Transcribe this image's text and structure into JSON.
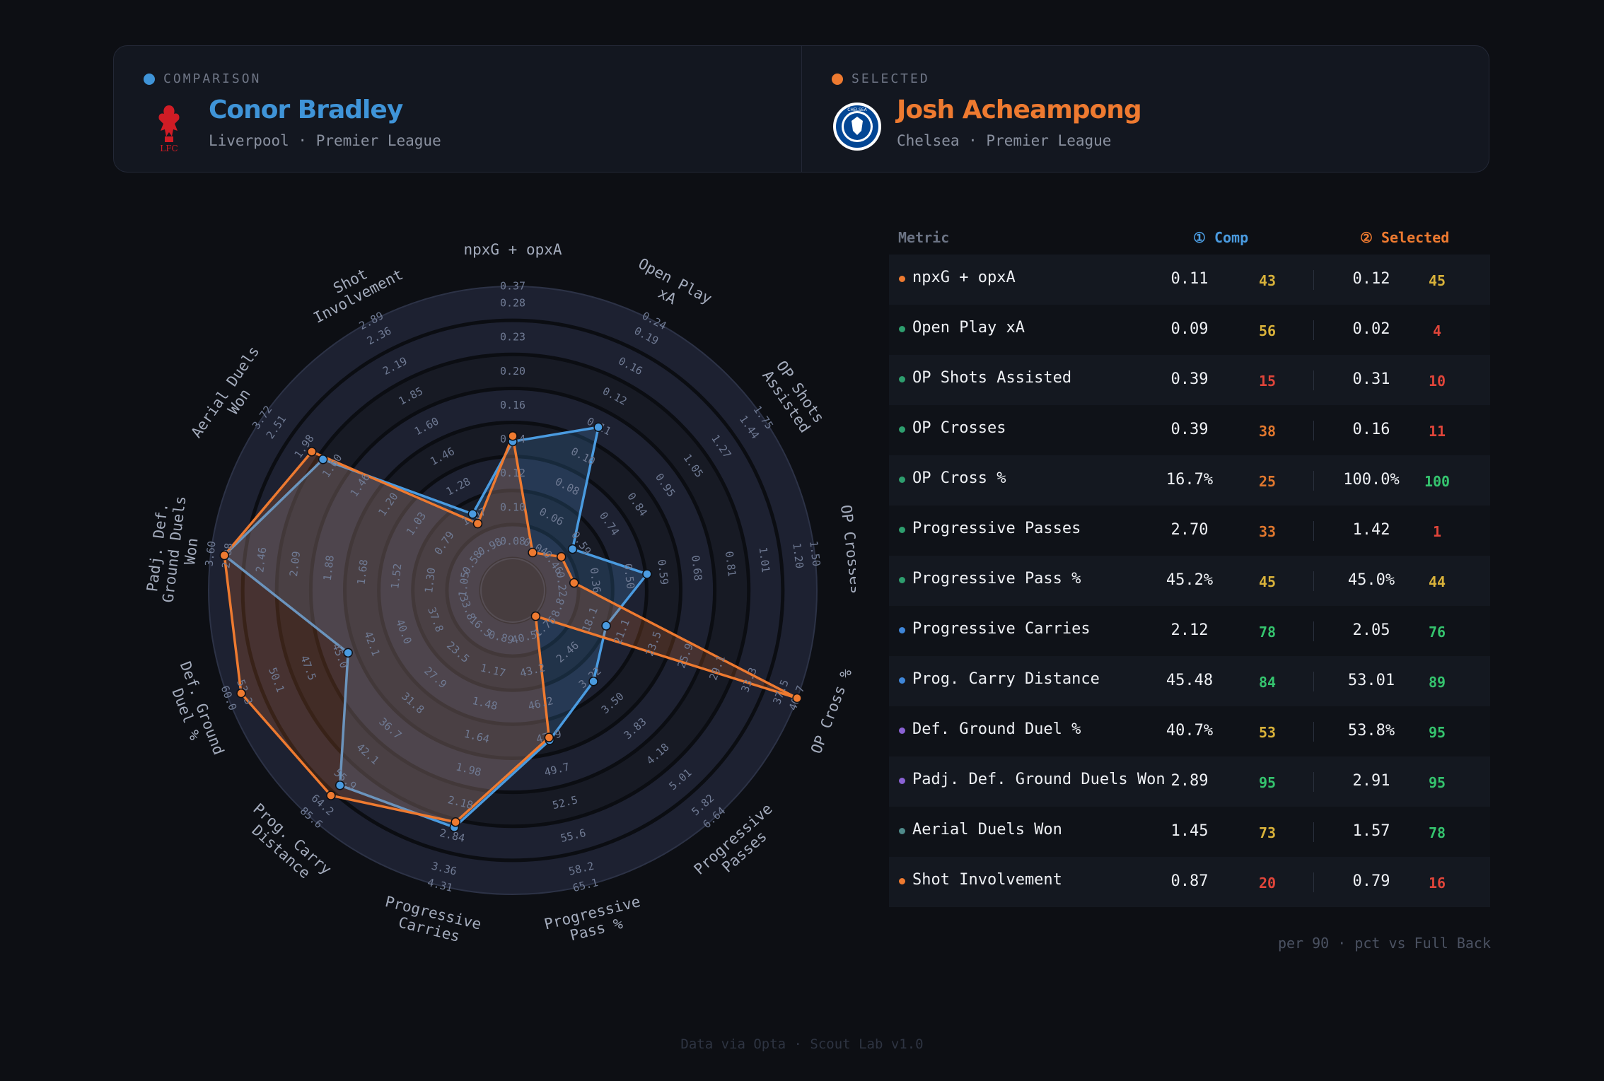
{
  "header": {
    "comparison": {
      "tag": "COMPARISON",
      "name": "Conor Bradley",
      "meta": "Liverpool · Premier League",
      "color": "#3f94d8",
      "crest_text": "LFC"
    },
    "selected": {
      "tag": "SELECTED",
      "name": "Josh Acheampong",
      "meta": "Chelsea · Premier League",
      "color": "#ee7a30",
      "crest_text": "CHELSEA"
    }
  },
  "table": {
    "col_metric": "Metric",
    "col_comp": "① Comp",
    "col_selected": "② Selected",
    "rows": [
      {
        "metric": "npxG + opxA",
        "comp_val": "0.11",
        "comp_pct": "43",
        "sel_val": "0.12",
        "sel_pct": "45",
        "dot": "#ee7a30"
      },
      {
        "metric": "Open Play xA",
        "comp_val": "0.09",
        "comp_pct": "56",
        "sel_val": "0.02",
        "sel_pct": "4",
        "dot": "#2e9e6e"
      },
      {
        "metric": "OP Shots Assisted",
        "comp_val": "0.39",
        "comp_pct": "15",
        "sel_val": "0.31",
        "sel_pct": "10",
        "dot": "#2e9e6e"
      },
      {
        "metric": "OP Crosses",
        "comp_val": "0.39",
        "comp_pct": "38",
        "sel_val": "0.16",
        "sel_pct": "11",
        "dot": "#2e9e6e"
      },
      {
        "metric": "OP Cross %",
        "comp_val": "16.7%",
        "comp_pct": "25",
        "sel_val": "100.0%",
        "sel_pct": "100",
        "dot": "#2e9e6e"
      },
      {
        "metric": "Progressive Passes",
        "comp_val": "2.70",
        "comp_pct": "33",
        "sel_val": "1.42",
        "sel_pct": "1",
        "dot": "#2e9e6e"
      },
      {
        "metric": "Progressive Pass %",
        "comp_val": "45.2%",
        "comp_pct": "45",
        "sel_val": "45.0%",
        "sel_pct": "44",
        "dot": "#2e9e6e"
      },
      {
        "metric": "Progressive Carries",
        "comp_val": "2.12",
        "comp_pct": "78",
        "sel_val": "2.05",
        "sel_pct": "76",
        "dot": "#3f86d8"
      },
      {
        "metric": "Prog. Carry Distance",
        "comp_val": "45.48",
        "comp_pct": "84",
        "sel_val": "53.01",
        "sel_pct": "89",
        "dot": "#3f86d8"
      },
      {
        "metric": "Def. Ground Duel %",
        "comp_val": "40.7%",
        "comp_pct": "53",
        "sel_val": "53.8%",
        "sel_pct": "95",
        "dot": "#8a62d4"
      },
      {
        "metric": "Padj. Def. Ground Duels Won",
        "comp_val": "2.89",
        "comp_pct": "95",
        "sel_val": "2.91",
        "sel_pct": "95",
        "dot": "#8a62d4"
      },
      {
        "metric": "Aerial Duels Won",
        "comp_val": "1.45",
        "comp_pct": "73",
        "sel_val": "1.57",
        "sel_pct": "78",
        "dot": "#4f8a8a"
      },
      {
        "metric": "Shot Involvement",
        "comp_val": "0.87",
        "comp_pct": "20",
        "sel_val": "0.79",
        "sel_pct": "16",
        "dot": "#ee7a30"
      }
    ]
  },
  "chart_data": {
    "type": "radar",
    "rings": 8,
    "axes": [
      {
        "label": "npxG + opxA",
        "ticks": [
          "0.08",
          "0.10",
          "0.12",
          "0.14",
          "0.16",
          "0.20",
          "0.23",
          "0.28",
          "0.37"
        ]
      },
      {
        "label": "Open Play xA",
        "ticks": [
          "0.04",
          "0.06",
          "0.08",
          "0.10",
          "0.11",
          "0.12",
          "0.16",
          "0.19",
          "0.24"
        ]
      },
      {
        "label": "OP Shots Assisted",
        "ticks": [
          "0.46",
          "0.59",
          "0.74",
          "0.84",
          "0.95",
          "1.05",
          "1.27",
          "1.44",
          "1.75"
        ]
      },
      {
        "label": "OP Crosses",
        "ticks": [
          "0.22",
          "0.36",
          "0.50",
          "0.59",
          "0.68",
          "0.81",
          "1.01",
          "1.20",
          "1.50"
        ]
      },
      {
        "label": "OP Cross %",
        "ticks": [
          "8.8",
          "18.1",
          "21.1",
          "23.5",
          "25.9",
          "29.1",
          "33.3",
          "37.5",
          "40.7"
        ]
      },
      {
        "label": "Progressive Passes",
        "ticks": [
          "1.76",
          "2.46",
          "3.22",
          "3.50",
          "3.83",
          "4.18",
          "5.01",
          "5.82",
          "6.64"
        ]
      },
      {
        "label": "Progressive Pass %",
        "ticks": [
          "40.5",
          "43.2",
          "46.2",
          "47.9",
          "49.7",
          "52.5",
          "55.6",
          "58.2",
          "65.1"
        ]
      },
      {
        "label": "Progressive Carries",
        "ticks": [
          "0.89",
          "1.17",
          "1.48",
          "1.64",
          "1.98",
          "2.18",
          "2.84",
          "3.36",
          "4.31"
        ]
      },
      {
        "label": "Prog. Carry Distance",
        "ticks": [
          "16.5",
          "23.5",
          "27.9",
          "31.8",
          "36.7",
          "42.1",
          "55.9",
          "64.2",
          "85.6"
        ]
      },
      {
        "label": "Def. Ground Duel %",
        "ticks": [
          "33.8",
          "37.8",
          "40.0",
          "42.1",
          "45.0",
          "47.5",
          "50.1",
          "53.3",
          "60.0"
        ]
      },
      {
        "label": "Padj. Def. Ground Duels Won",
        "ticks": [
          "1.05",
          "1.30",
          "1.52",
          "1.68",
          "1.88",
          "2.09",
          "2.46",
          "2.88",
          "3.60"
        ]
      },
      {
        "label": "Aerial Duels Won",
        "ticks": [
          "0.58",
          "0.79",
          "1.03",
          "1.20",
          "1.46",
          "1.60",
          "1.98",
          "2.51",
          "3.72"
        ]
      },
      {
        "label": "Shot Involvement",
        "ticks": [
          "0.98",
          "1.07",
          "1.28",
          "1.46",
          "1.60",
          "1.85",
          "2.19",
          "2.36",
          "2.89"
        ]
      }
    ],
    "series": [
      {
        "name": "Conor Bradley",
        "role": "comparison",
        "color": "#4a9be0",
        "percentiles": [
          43,
          56,
          15,
          38,
          25,
          33,
          45,
          78,
          84,
          53,
          95,
          73,
          20
        ]
      },
      {
        "name": "Josh Acheampong",
        "role": "selected",
        "color": "#ee7a30",
        "percentiles": [
          45,
          4,
          10,
          11,
          100,
          1,
          44,
          76,
          89,
          95,
          95,
          78,
          16
        ]
      }
    ]
  },
  "footnote": "per 90 · pct vs Full Back",
  "credit": "Data via Opta · Scout Lab v1.0"
}
